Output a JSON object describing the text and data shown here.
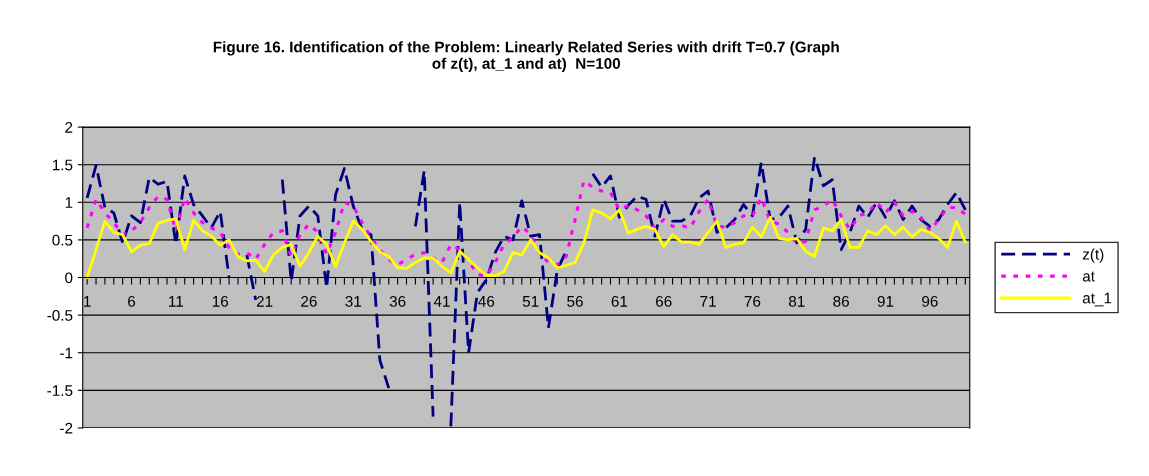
{
  "chart_data": {
    "type": "line",
    "title": "Figure 16. Identification of the Problem: Linearly Related Series with drift T=0.7 (Graph\nof z(t), at_1 and at)  N=100",
    "categories": [
      "1",
      null,
      null,
      null,
      null,
      "6",
      null,
      null,
      null,
      null,
      "11",
      null,
      null,
      null,
      null,
      "16",
      null,
      null,
      null,
      null,
      "21",
      null,
      null,
      null,
      null,
      "26",
      null,
      null,
      null,
      null,
      "31",
      null,
      null,
      null,
      null,
      "36",
      null,
      null,
      null,
      null,
      "41",
      null,
      null,
      null,
      null,
      "46",
      null,
      null,
      null,
      null,
      "51",
      null,
      null,
      null,
      null,
      "56",
      null,
      null,
      null,
      null,
      "61",
      null,
      null,
      null,
      null,
      "66",
      null,
      null,
      null,
      null,
      "71",
      null,
      null,
      null,
      null,
      "76",
      null,
      null,
      null,
      null,
      "81",
      null,
      null,
      null,
      null,
      "86",
      null,
      null,
      null,
      null,
      "91",
      null,
      null,
      null,
      null,
      "96",
      null,
      null,
      null,
      null
    ],
    "series": [
      {
        "name": "z(t)",
        "color": "#000080",
        "line_style": "dashed",
        "values": [
          1.06,
          1.49,
          0.93,
          0.86,
          0.46,
          0.82,
          0.73,
          1.33,
          1.24,
          1.28,
          0.44,
          1.35,
          0.97,
          0.82,
          0.66,
          0.88,
          0.0,
          null,
          0.3,
          -0.3,
          null,
          null,
          1.3,
          -0.05,
          0.82,
          0.95,
          0.82,
          -0.14,
          1.1,
          1.45,
          0.95,
          0.64,
          0.57,
          -1.1,
          -1.47,
          null,
          null,
          0.68,
          1.42,
          -1.85,
          null,
          -1.98,
          1.0,
          -1.0,
          -0.2,
          -0.03,
          0.33,
          0.55,
          0.5,
          1.02,
          0.55,
          0.57,
          -0.67,
          0.1,
          0.35,
          null,
          null,
          1.38,
          1.2,
          1.35,
          0.8,
          0.96,
          1.08,
          1.04,
          0.55,
          1.04,
          0.75,
          0.75,
          0.82,
          1.06,
          1.15,
          0.6,
          0.66,
          0.77,
          0.97,
          0.82,
          1.53,
          0.77,
          0.8,
          0.95,
          0.46,
          0.64,
          1.6,
          1.22,
          1.3,
          0.37,
          0.6,
          0.95,
          0.8,
          1.0,
          0.8,
          1.02,
          0.77,
          0.95,
          0.77,
          0.68,
          0.77,
          0.97,
          1.13,
          0.9
        ]
      },
      {
        "name": "at",
        "color": "#ff00ff",
        "line_style": "dotted",
        "values": [
          0.66,
          1.04,
          0.86,
          0.73,
          0.57,
          0.62,
          0.73,
          0.93,
          1.08,
          1.04,
          0.62,
          1.06,
          0.86,
          0.73,
          0.66,
          0.6,
          0.4,
          0.31,
          0.33,
          0.24,
          0.44,
          0.6,
          0.62,
          0.28,
          0.57,
          0.71,
          0.6,
          0.31,
          0.6,
          1.0,
          0.95,
          0.73,
          0.53,
          0.37,
          0.24,
          0.17,
          0.24,
          0.31,
          0.33,
          0.26,
          0.2,
          0.44,
          0.37,
          0.22,
          0.04,
          0.02,
          0.2,
          0.44,
          0.53,
          0.68,
          0.57,
          0.33,
          0.2,
          0.17,
          0.28,
          0.77,
          1.29,
          1.2,
          1.15,
          1.13,
          0.9,
          0.96,
          0.9,
          0.82,
          0.66,
          0.77,
          0.68,
          0.69,
          0.66,
          0.88,
          1.04,
          0.68,
          0.67,
          0.73,
          0.82,
          0.82,
          1.06,
          0.75,
          0.71,
          0.6,
          0.45,
          0.48,
          0.9,
          0.95,
          1.04,
          0.82,
          0.64,
          0.82,
          0.86,
          1.0,
          0.86,
          1.0,
          0.82,
          0.88,
          0.8,
          0.62,
          0.77,
          0.93,
          0.93,
          0.84
        ]
      },
      {
        "name": "at_1",
        "color": "#ffff00",
        "line_style": "solid",
        "values": [
          0.0,
          0.37,
          0.75,
          0.6,
          0.57,
          0.34,
          0.43,
          0.45,
          0.72,
          0.76,
          0.78,
          0.37,
          0.76,
          0.62,
          0.55,
          0.43,
          0.5,
          0.28,
          0.22,
          0.23,
          0.08,
          0.3,
          0.4,
          0.44,
          0.15,
          0.33,
          0.55,
          0.44,
          0.15,
          0.46,
          0.75,
          0.64,
          0.48,
          0.34,
          0.28,
          0.13,
          0.12,
          0.2,
          0.26,
          0.26,
          0.15,
          0.06,
          0.35,
          0.24,
          0.13,
          0.03,
          0.02,
          0.08,
          0.33,
          0.3,
          0.5,
          0.33,
          0.26,
          0.13,
          0.16,
          0.2,
          0.46,
          0.9,
          0.86,
          0.78,
          0.9,
          0.59,
          0.64,
          0.68,
          0.64,
          0.41,
          0.57,
          0.47,
          0.47,
          0.44,
          0.6,
          0.75,
          0.4,
          0.44,
          0.46,
          0.67,
          0.54,
          0.8,
          0.52,
          0.5,
          0.52,
          0.35,
          0.28,
          0.66,
          0.62,
          0.77,
          0.4,
          0.4,
          0.62,
          0.57,
          0.69,
          0.57,
          0.67,
          0.54,
          0.64,
          0.6,
          0.52,
          0.4,
          0.75,
          0.47
        ]
      }
    ],
    "ylim": [
      -2,
      2
    ],
    "yticks": [
      -2,
      -1.5,
      -1,
      -0.5,
      0,
      0.5,
      1,
      1.5,
      2
    ],
    "grid": "y",
    "legend": "right",
    "marker": "none"
  }
}
